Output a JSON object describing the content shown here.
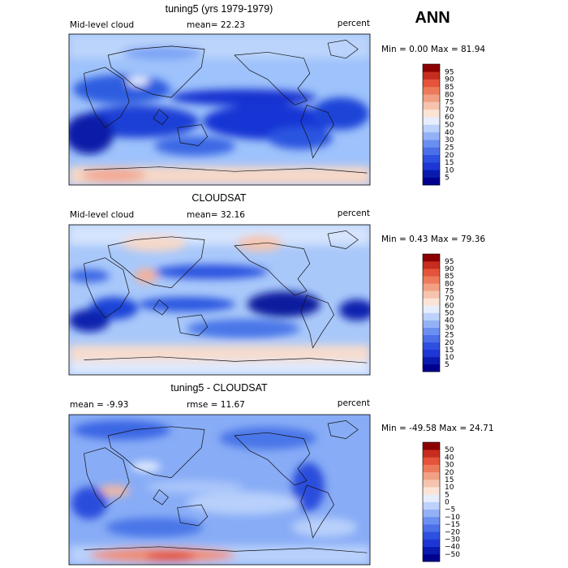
{
  "season": "ANN",
  "chart_data": [
    {
      "type": "heatmap",
      "title": "tuning5 (yrs 1979-1979)",
      "variable": "Mid-level cloud",
      "mean_text": "mean=  22.23",
      "units": "percent",
      "range_text": "Min =   0.00 Max =  81.94",
      "stats": {
        "mean": 22.23,
        "min": 0.0,
        "max": 81.94
      },
      "colorbar": {
        "levels": [
          "5",
          "10",
          "15",
          "20",
          "25",
          "30",
          "40",
          "50",
          "60",
          "70",
          "75",
          "80",
          "85",
          "90",
          "95"
        ]
      }
    },
    {
      "type": "heatmap",
      "title": "CLOUDSAT",
      "variable": "Mid-level cloud",
      "mean_text": "mean=  32.16",
      "units": "percent",
      "range_text": "Min =   0.43 Max =  79.36",
      "stats": {
        "mean": 32.16,
        "min": 0.43,
        "max": 79.36
      },
      "colorbar": {
        "levels": [
          "5",
          "10",
          "15",
          "20",
          "25",
          "30",
          "40",
          "50",
          "60",
          "70",
          "75",
          "80",
          "85",
          "90",
          "95"
        ]
      }
    },
    {
      "type": "heatmap",
      "title": "tuning5 - CLOUDSAT",
      "variable": "mean =  -9.93",
      "mean_text": "rmse =  11.67",
      "units": "percent",
      "range_text": "Min = -49.58 Max =  24.71",
      "stats": {
        "mean": -9.93,
        "rmse": 11.67,
        "min": -49.58,
        "max": 24.71
      },
      "colorbar": {
        "levels": [
          "−50",
          "−40",
          "−30",
          "−20",
          "−15",
          "−10",
          "−5",
          "0",
          "5",
          "10",
          "15",
          "20",
          "30",
          "40",
          "50"
        ]
      }
    }
  ]
}
